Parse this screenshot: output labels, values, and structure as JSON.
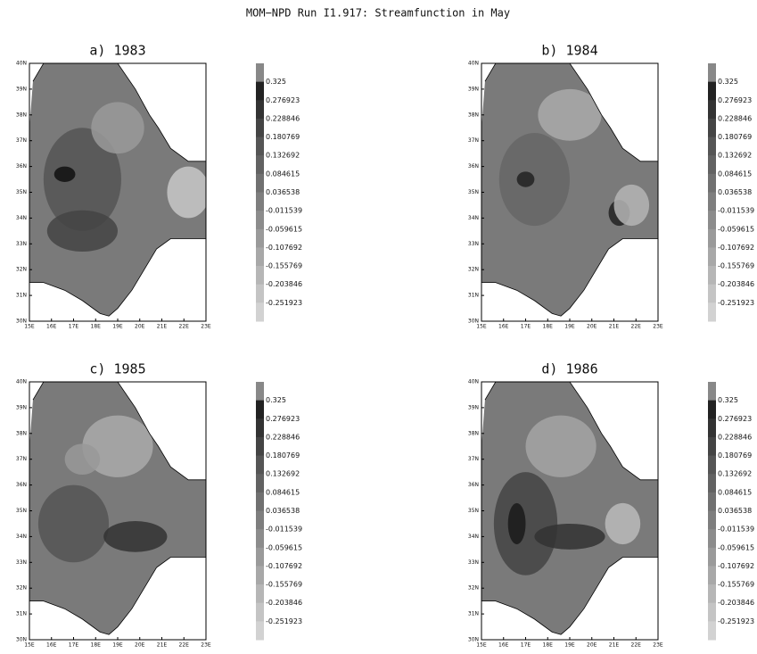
{
  "title": "MOM−NPD Run I1.917: Streamfunction in May",
  "panels": [
    {
      "title": "a) 1983"
    },
    {
      "title": "b) 1984"
    },
    {
      "title": "c) 1985"
    },
    {
      "title": "d) 1986"
    }
  ],
  "x_axis_labels": [
    "15E",
    "16E",
    "17E",
    "18E",
    "19E",
    "20E",
    "21E",
    "22E",
    "23E"
  ],
  "y_axis_labels": [
    "30N",
    "31N",
    "32N",
    "33N",
    "34N",
    "35N",
    "36N",
    "37N",
    "38N",
    "39N",
    "40N"
  ],
  "colorbar_labels": [
    "0.325",
    "0.276923",
    "0.228846",
    "0.180769",
    "0.132692",
    "0.084615",
    "0.036538",
    "-0.011539",
    "-0.059615",
    "-0.107692",
    "-0.155769",
    "-0.203846",
    "-0.251923"
  ]
}
